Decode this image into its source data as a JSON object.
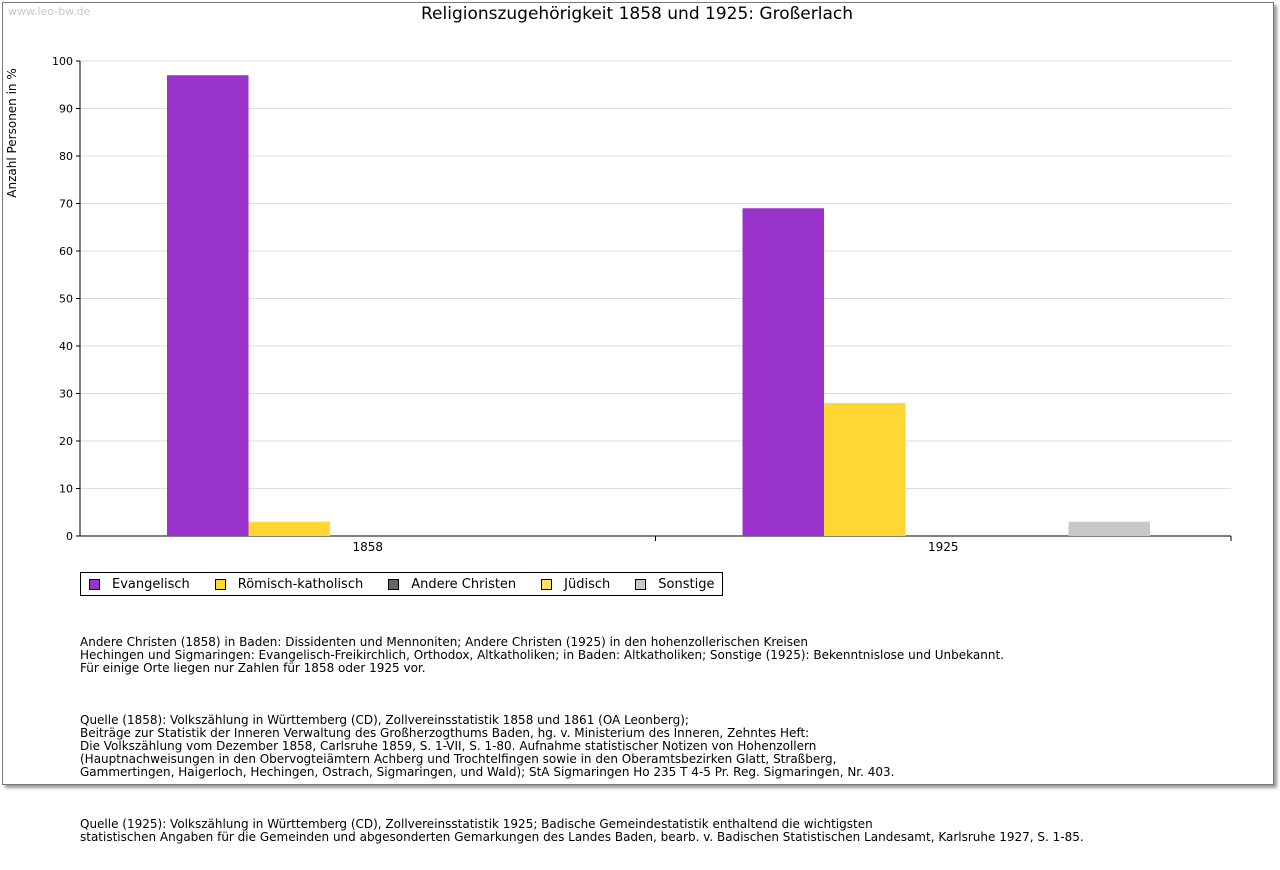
{
  "watermark": "www.leo-bw.de",
  "title": "Religionszugehörigkeit 1858 und 1925: Großerlach",
  "chart_data": {
    "type": "bar",
    "title": "Religionszugehörigkeit 1858 und 1925: Großerlach",
    "xlabel": "",
    "ylabel": "Anzahl Personen in %",
    "ylim": [
      0,
      100
    ],
    "yticks": [
      0,
      10,
      20,
      30,
      40,
      50,
      60,
      70,
      80,
      90,
      100
    ],
    "grid": true,
    "categories": [
      "1858",
      "1925"
    ],
    "series": [
      {
        "name": "Evangelisch",
        "color": "#9933cc",
        "values": [
          97,
          69
        ]
      },
      {
        "name": "Römisch-katholisch",
        "color": "#ffd633",
        "values": [
          3,
          28
        ]
      },
      {
        "name": "Andere Christen",
        "color": "#666666",
        "values": [
          0,
          0
        ]
      },
      {
        "name": "Jüdisch",
        "color": "#ffe066",
        "values": [
          0,
          0
        ]
      },
      {
        "name": "Sonstige",
        "color": "#c8c8c8",
        "values": [
          0,
          3
        ]
      }
    ],
    "legend": "bottom"
  },
  "notes": {
    "p1": [
      "Andere Christen (1858) in Baden: Dissidenten und Mennoniten; Andere Christen (1925) in den hohenzollerischen Kreisen",
      "Hechingen und Sigmaringen: Evangelisch-Freikirchlich, Orthodox, Altkatholiken; in Baden: Altkatholiken; Sonstige (1925): Bekenntnislose und Unbekannt.",
      "Für einige Orte liegen nur Zahlen für 1858 oder 1925 vor."
    ],
    "p2": [
      "Quelle (1858): Volkszählung in Württemberg (CD), Zollvereinsstatistik 1858 und 1861 (OA Leonberg);",
      "Beiträge zur Statistik der Inneren Verwaltung des Großherzogthums Baden, hg. v. Ministerium des Inneren, Zehntes Heft:",
      "Die Volkszählung vom Dezember 1858, Carlsruhe 1859, S. 1-VII, S. 1-80. Aufnahme statistischer Notizen von Hohenzollern",
      "(Hauptnachweisungen in den Obervogteiämtern Achberg und Trochtelfingen sowie in den Oberamtsbezirken Glatt, Straßberg,",
      "Gammertingen, Haigerloch, Hechingen, Ostrach, Sigmaringen, und Wald); StA Sigmaringen Ho 235 T 4-5 Pr. Reg. Sigmaringen, Nr. 403."
    ],
    "p3": [
      "Quelle (1925): Volkszählung in Württemberg (CD), Zollvereinsstatistik 1925; Badische Gemeindestatistik enthaltend die wichtigsten",
      "statistischen Angaben für die Gemeinden und abgesonderten Gemarkungen des Landes Baden, bearb. v. Badischen Statistischen Landesamt, Karlsruhe 1927, S. 1-85."
    ]
  }
}
